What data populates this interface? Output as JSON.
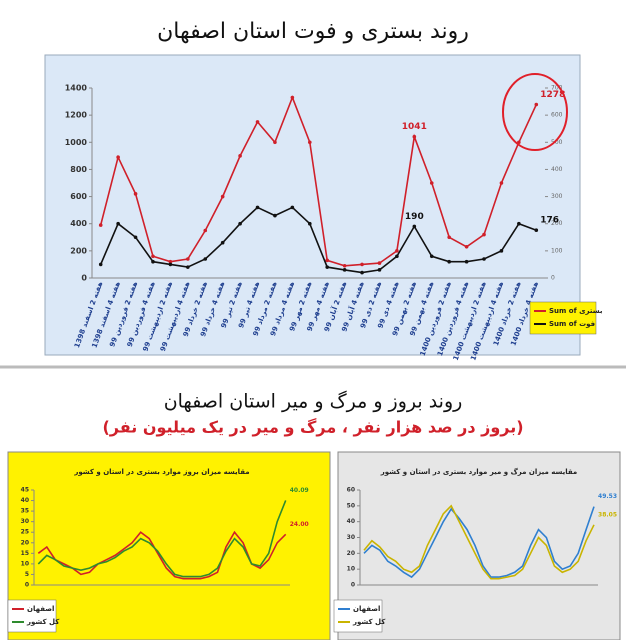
{
  "chart_data": [
    {
      "type": "line",
      "title": "روند بستری و فوت استان اصفهان",
      "categories": [
        "هفته 2 اسفند 1398",
        "هفته 4 اسفند 1398",
        "هفته 2 فروردین 99",
        "هفته 4 فروردین 99",
        "هفته 2 اردیبهشت 99",
        "هفته 4 اردیبهشت 99",
        "هفته 2 خرداد 99",
        "هفته 4 خرداد 99",
        "هفته 2 تیر 99",
        "هفته 4 تیر 99",
        "هفته 2 مرداد 99",
        "هفته 4 مرداد 99",
        "هفته 2 مهر 99",
        "هفته 4 مهر 99",
        "هفته 2 آبان 99",
        "هفته 4 آبان 99",
        "هفته 2 دی 99",
        "هفته 4 دی 99",
        "هفته 2 بهمن 99",
        "هفته 4 بهمن 99",
        "هفته 2 فروردین 1400",
        "هفته 4 فروردین 1400",
        "هفته 2 اردیبهشت 1400",
        "هفته 4 اردیبهشت 1400",
        "هفته 2 خرداد 1400",
        "هفته 4 خرداد 1400"
      ],
      "series": [
        {
          "name": "Sum of بستری",
          "color": "#d0202a",
          "values": [
            390,
            890,
            620,
            160,
            120,
            140,
            350,
            600,
            900,
            1150,
            1000,
            1330,
            1000,
            130,
            90,
            100,
            110,
            200,
            1041,
            700,
            300,
            230,
            320,
            700,
            1000,
            1278
          ],
          "value_labels": [
            null,
            null,
            null,
            null,
            null,
            null,
            null,
            null,
            null,
            null,
            null,
            null,
            null,
            null,
            null,
            null,
            null,
            null,
            "1041",
            null,
            null,
            null,
            null,
            null,
            null,
            "1278"
          ]
        },
        {
          "name": "Sum of فوت",
          "color": "#111111",
          "axis": "y2",
          "values": [
            50,
            200,
            150,
            60,
            50,
            40,
            70,
            130,
            200,
            260,
            230,
            260,
            200,
            40,
            30,
            20,
            30,
            80,
            190,
            80,
            60,
            60,
            70,
            100,
            200,
            176
          ],
          "value_labels": [
            null,
            null,
            null,
            null,
            null,
            null,
            null,
            null,
            null,
            null,
            null,
            null,
            null,
            null,
            null,
            null,
            null,
            null,
            "190",
            null,
            null,
            null,
            null,
            null,
            null,
            "176"
          ]
        }
      ],
      "ylim": [
        0,
        1400
      ],
      "yticks": [
        0,
        200,
        400,
        600,
        800,
        1000,
        1200,
        1400
      ],
      "y2lim": [
        0,
        700
      ],
      "y2ticks": [
        0,
        100,
        200,
        300,
        400,
        500,
        600,
        700
      ],
      "legend": "bottom-right",
      "background": "#dbe8f7",
      "markers": true
    },
    {
      "type": "line",
      "title": "مقایسه میزان بروز موارد بستری در استان و کشور",
      "categories": [
        null,
        null,
        null,
        null,
        null,
        null,
        null,
        null,
        null,
        null,
        null,
        null,
        null,
        null,
        null,
        null,
        null,
        null,
        null,
        null,
        null,
        null,
        null,
        null,
        null,
        null,
        null,
        null,
        null,
        null
      ],
      "series": [
        {
          "name": "اصفهان",
          "color": "#d0202a",
          "values": [
            15,
            18,
            12,
            10,
            8,
            5,
            6,
            10,
            12,
            14,
            17,
            20,
            25,
            22,
            15,
            8,
            4,
            3,
            3,
            3,
            4,
            6,
            18,
            25,
            20,
            10,
            8,
            12,
            20,
            24
          ],
          "value_labels": [
            null,
            null,
            null,
            null,
            null,
            null,
            null,
            null,
            null,
            null,
            null,
            null,
            null,
            null,
            null,
            null,
            null,
            null,
            null,
            null,
            null,
            null,
            null,
            null,
            null,
            null,
            null,
            null,
            null,
            "24.00"
          ]
        },
        {
          "name": "کل کشور",
          "color": "#2e8b2e",
          "values": [
            10,
            14,
            12,
            9,
            8,
            7,
            8,
            10,
            11,
            13,
            16,
            18,
            22,
            20,
            16,
            10,
            5,
            4,
            4,
            4,
            5,
            8,
            16,
            22,
            18,
            10,
            9,
            15,
            30,
            40.09
          ],
          "value_labels": [
            null,
            null,
            null,
            null,
            null,
            null,
            null,
            null,
            null,
            null,
            null,
            null,
            null,
            null,
            null,
            null,
            null,
            null,
            null,
            null,
            null,
            null,
            null,
            null,
            null,
            null,
            null,
            null,
            null,
            "40.09"
          ]
        }
      ],
      "ylim": [
        0,
        45
      ],
      "yticks": [
        0,
        5,
        10,
        15,
        20,
        25,
        30,
        35,
        40,
        45
      ],
      "legend": "bottom-left",
      "background": "#fff200",
      "markers": false
    },
    {
      "type": "line",
      "title": "مقایسه میزان مرگ و میر موارد بستری در استان و کشور",
      "categories": [
        null,
        null,
        null,
        null,
        null,
        null,
        null,
        null,
        null,
        null,
        null,
        null,
        null,
        null,
        null,
        null,
        null,
        null,
        null,
        null,
        null,
        null,
        null,
        null,
        null,
        null,
        null,
        null,
        null,
        null
      ],
      "series": [
        {
          "name": "اصفهان",
          "color": "#2f7fd0",
          "values": [
            20,
            25,
            22,
            15,
            12,
            8,
            5,
            10,
            20,
            30,
            40,
            48,
            42,
            35,
            25,
            12,
            5,
            5,
            6,
            8,
            12,
            25,
            35,
            30,
            15,
            10,
            12,
            20,
            35,
            49.53
          ],
          "value_labels": [
            null,
            null,
            null,
            null,
            null,
            null,
            null,
            null,
            null,
            null,
            null,
            null,
            null,
            null,
            null,
            null,
            null,
            null,
            null,
            null,
            null,
            null,
            null,
            null,
            null,
            null,
            null,
            null,
            null,
            "49.53"
          ]
        },
        {
          "name": "کل کشور",
          "color": "#c9b400",
          "values": [
            22,
            28,
            24,
            18,
            15,
            10,
            8,
            12,
            25,
            35,
            45,
            50,
            40,
            30,
            20,
            10,
            4,
            4,
            5,
            6,
            10,
            20,
            30,
            25,
            12,
            8,
            10,
            15,
            28,
            38.05
          ],
          "value_labels": [
            null,
            null,
            null,
            null,
            null,
            null,
            null,
            null,
            null,
            null,
            null,
            null,
            null,
            null,
            null,
            null,
            null,
            null,
            null,
            null,
            null,
            null,
            null,
            null,
            null,
            null,
            null,
            null,
            null,
            "38.05"
          ]
        }
      ],
      "ylim": [
        0,
        60
      ],
      "yticks": [
        0,
        10,
        20,
        30,
        40,
        50,
        60
      ],
      "legend": "bottom-left",
      "background": "#e6e6e6",
      "markers": false
    }
  ],
  "section2": {
    "title": "روند بروز و مرگ و میر استان اصفهان",
    "subtitle": "(بروز در صد هزار نفر ، مرگ و میر در یک میلیون نفر)"
  }
}
